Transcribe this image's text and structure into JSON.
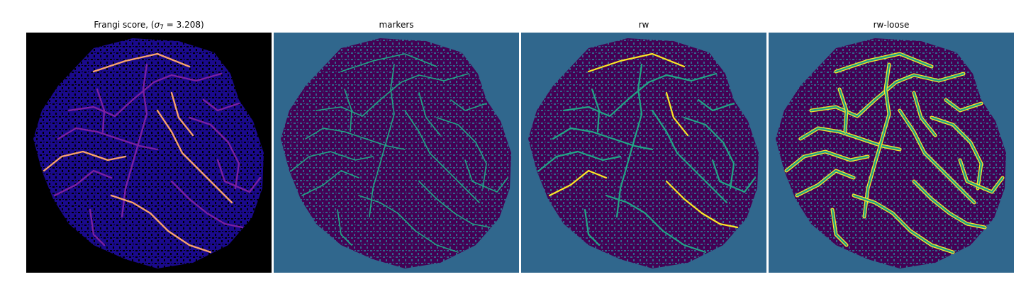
{
  "panels": [
    {
      "id": "frangi",
      "title_prefix": "Frangi score, (",
      "title_sigma": "σ",
      "title_sub": "7",
      "title_suffix": " = 3.208)"
    },
    {
      "id": "markers",
      "title": "markers"
    },
    {
      "id": "rw",
      "title": "rw"
    },
    {
      "id": "rw-loose",
      "title": "rw-loose"
    }
  ],
  "colors": {
    "frangi_background": "#000000",
    "frangi_tissue": "#1a0a8c",
    "frangi_vessel_low": "#7b1fa2",
    "frangi_vessel_high": "#f9a26b",
    "label_background": "#30678d",
    "label_tissue": "#440154",
    "label_vessel": "#21a685",
    "label_vessel_bright": "#fde725"
  }
}
